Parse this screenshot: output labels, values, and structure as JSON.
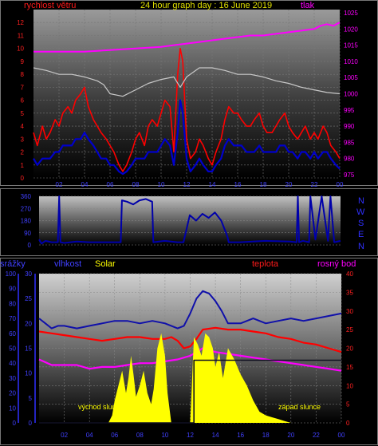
{
  "header": {
    "left_label": "rychlost větru",
    "title": "24 hour graph day : 16 June 2019",
    "right_label": "tlak"
  },
  "wind_dir_letters": [
    "N",
    "W",
    "S",
    "E",
    "N"
  ],
  "lower_labels": {
    "rain": "srážky",
    "humidity": "vlhkost",
    "solar": "Solar",
    "temperature": "teplota",
    "dewpoint": "rosný bod"
  },
  "annotations": {
    "sunrise": "východ slun",
    "sunset": "západ slunce"
  },
  "colors": {
    "wind_gust": "#ff0000",
    "wind_avg": "#0000cc",
    "pressure": "#ff00ff",
    "outdoor": "#c8c8c8",
    "wind_dir": "#0000aa",
    "humidity": "#1010aa",
    "temperature": "#ff0000",
    "dewpoint": "#ff00ff",
    "solar": "#ffff00",
    "rain": "#0000aa"
  },
  "chart_data": [
    {
      "type": "line",
      "name": "wind-pressure",
      "x_ticks": [
        "02",
        "04",
        "06",
        "08",
        "10",
        "12",
        "14",
        "16",
        "18",
        "20",
        "22",
        "00"
      ],
      "x_range": [
        0,
        24
      ],
      "y_left_ticks": [
        0,
        1,
        2,
        3,
        4,
        5,
        6,
        7,
        8,
        9,
        10,
        11,
        12
      ],
      "y_left_range": [
        0,
        13
      ],
      "y_right_ticks": [
        975,
        980,
        985,
        990,
        995,
        1000,
        1005,
        1010,
        1015,
        1020,
        1025
      ],
      "y_right_range": [
        974,
        1026
      ],
      "series": [
        {
          "key": "gust",
          "axis": "left",
          "x": [
            0,
            0.3,
            0.7,
            1,
            1.3,
            1.7,
            2,
            2.3,
            2.7,
            3,
            3.3,
            3.7,
            4,
            4.3,
            4.7,
            5,
            5.3,
            5.7,
            6,
            6.3,
            6.7,
            7,
            7.3,
            7.7,
            8,
            8.3,
            8.7,
            9,
            9.3,
            9.7,
            10,
            10.3,
            10.7,
            11,
            11.3,
            11.5,
            11.7,
            12,
            12.3,
            12.7,
            13,
            13.3,
            13.7,
            14,
            14.3,
            14.7,
            15,
            15.3,
            15.7,
            16,
            16.3,
            16.7,
            17,
            17.3,
            17.7,
            18,
            18.3,
            18.7,
            19,
            19.3,
            19.7,
            20,
            20.3,
            20.7,
            21,
            21.3,
            21.7,
            22,
            22.3,
            22.7,
            23,
            23.3,
            23.7,
            24
          ],
          "y": [
            3.5,
            2.5,
            4,
            3,
            3.5,
            4.5,
            4,
            5,
            5.5,
            5,
            6,
            6.5,
            7,
            5.5,
            4.5,
            4,
            3.5,
            3,
            2.5,
            2,
            1,
            0.5,
            1,
            2,
            3,
            3.5,
            2.5,
            4,
            4.5,
            4,
            5,
            6,
            5.5,
            2,
            8,
            10,
            9,
            3,
            1.5,
            2,
            3,
            2.5,
            1.5,
            1,
            2,
            3,
            4.5,
            5.5,
            5,
            5,
            4.5,
            4,
            4,
            4.5,
            5,
            4,
            3.5,
            3.5,
            4,
            4.5,
            5,
            4,
            3.5,
            3,
            3.5,
            4,
            3,
            3.5,
            3,
            4,
            3.5,
            2.5,
            2,
            1.5
          ]
        },
        {
          "key": "avg",
          "axis": "left",
          "x": [
            0,
            0.3,
            0.7,
            1,
            1.3,
            1.7,
            2,
            2.3,
            2.7,
            3,
            3.3,
            3.7,
            4,
            4.3,
            4.7,
            5,
            5.3,
            5.7,
            6,
            6.3,
            6.7,
            7,
            7.3,
            7.7,
            8,
            8.3,
            8.7,
            9,
            9.3,
            9.7,
            10,
            10.3,
            10.7,
            11,
            11.3,
            11.5,
            11.7,
            12,
            12.3,
            12.7,
            13,
            13.3,
            13.7,
            14,
            14.3,
            14.7,
            15,
            15.3,
            15.7,
            16,
            16.3,
            16.7,
            17,
            17.3,
            17.7,
            18,
            18.3,
            18.7,
            19,
            19.3,
            19.7,
            20,
            20.3,
            20.7,
            21,
            21.3,
            21.7,
            22,
            22.3,
            22.7,
            23,
            23.3,
            23.7,
            24
          ],
          "y": [
            1.5,
            1,
            1.5,
            1.5,
            1.5,
            2,
            2,
            2.5,
            2.5,
            2.5,
            3,
            3,
            3.5,
            3,
            2.5,
            2,
            1.5,
            1.5,
            1,
            1,
            0.5,
            0.3,
            0.5,
            1,
            1.5,
            1.5,
            1.5,
            2,
            2,
            2,
            2.5,
            3,
            2.5,
            1,
            3.5,
            6,
            5,
            1.5,
            0.5,
            1,
            1.5,
            1,
            0.5,
            0.5,
            1,
            1.5,
            2.5,
            3,
            2.5,
            2.5,
            2.5,
            2,
            2,
            2,
            2.5,
            2,
            2,
            2,
            2,
            2.5,
            2.5,
            2,
            2,
            1.5,
            2,
            2,
            1.5,
            2,
            1.5,
            2,
            2,
            1.5,
            1,
            0.7
          ]
        },
        {
          "key": "pressure",
          "axis": "right",
          "x": [
            0,
            2,
            4,
            6,
            8,
            10,
            11,
            12,
            13,
            14,
            15,
            16,
            17,
            18,
            19,
            20,
            21,
            22,
            22.5,
            23,
            23.5,
            24
          ],
          "y": [
            1013,
            1013,
            1013,
            1013.5,
            1014,
            1014.5,
            1015,
            1015.5,
            1016,
            1016.5,
            1017,
            1017.5,
            1018,
            1018,
            1018.5,
            1019,
            1019.5,
            1020,
            1021,
            1021.5,
            1021,
            1022
          ]
        },
        {
          "key": "outdoor",
          "axis": "left",
          "x": [
            0,
            1,
            2,
            3,
            4,
            5,
            5.5,
            6,
            7,
            8,
            9,
            10,
            11,
            11.5,
            12,
            13,
            14,
            15,
            16,
            17,
            18,
            19,
            20,
            21,
            22,
            23,
            24
          ],
          "y": [
            8.5,
            8.3,
            8,
            8,
            7.8,
            7.5,
            7.2,
            6.5,
            6.3,
            6.8,
            7.3,
            7.6,
            7.8,
            7,
            7.8,
            8.5,
            8.5,
            8.3,
            8,
            8,
            7.8,
            7.5,
            7.3,
            7,
            6.8,
            6.6,
            6.5
          ]
        }
      ]
    },
    {
      "type": "line",
      "name": "wind-direction",
      "x_range": [
        0,
        24
      ],
      "y_ticks": [
        0,
        90,
        180,
        270,
        360
      ],
      "y_range": [
        0,
        360
      ],
      "series": [
        {
          "key": "direction",
          "x": [
            0,
            0.2,
            0.5,
            1,
            1.5,
            1.6,
            1.7,
            2,
            3,
            4,
            5,
            6,
            6.5,
            6.6,
            7,
            7.5,
            8,
            8.5,
            9,
            9.1,
            10,
            11,
            11.5,
            12,
            12.5,
            13,
            13.5,
            14,
            14.5,
            15,
            15.1,
            16,
            18,
            20,
            20.5,
            20.6,
            20.7,
            21,
            21.5,
            21.6,
            22,
            22.5,
            23,
            23.2,
            23.5,
            24
          ],
          "y": [
            40,
            10,
            30,
            20,
            20,
            360,
            20,
            15,
            25,
            20,
            20,
            20,
            20,
            330,
            320,
            300,
            330,
            340,
            320,
            20,
            30,
            20,
            20,
            220,
            180,
            230,
            200,
            240,
            180,
            60,
            20,
            20,
            30,
            25,
            20,
            360,
            20,
            30,
            20,
            360,
            40,
            360,
            30,
            360,
            20,
            30
          ]
        }
      ]
    },
    {
      "type": "line",
      "name": "temp-humidity-solar",
      "x_range": [
        0,
        24
      ],
      "y_rain_ticks": [
        0,
        10,
        20,
        30,
        40,
        50,
        60,
        70,
        80,
        90,
        100
      ],
      "y_rain_range": [
        0,
        100
      ],
      "y_humidity_ticks": [
        0,
        5,
        10,
        15,
        20,
        25,
        30
      ],
      "y_humidity_range": [
        0,
        30
      ],
      "y_temp_ticks": [
        0,
        5,
        10,
        15,
        20,
        25,
        30,
        35,
        40
      ],
      "y_temp_range": [
        0,
        40
      ],
      "series": [
        {
          "key": "humidity",
          "axis": "humidity",
          "x": [
            0,
            0.5,
            1,
            1.5,
            2,
            3,
            4,
            5,
            6,
            7,
            8,
            9,
            10,
            10.5,
            11,
            11.5,
            12,
            12.5,
            13,
            13.5,
            14,
            14.5,
            15,
            16,
            17,
            18,
            19,
            20,
            21,
            22,
            23,
            24
          ],
          "y": [
            21,
            20,
            19,
            19.5,
            19.5,
            19,
            19.5,
            20,
            20.5,
            20.5,
            20,
            20.5,
            20,
            19.5,
            19,
            19.5,
            22,
            25,
            26.5,
            26,
            24.5,
            22.5,
            20,
            20,
            21,
            20,
            20.5,
            21,
            20.5,
            21,
            21.5,
            22
          ]
        },
        {
          "key": "temperature",
          "axis": "temp",
          "x": [
            0,
            1,
            2,
            3,
            4,
            5,
            6,
            7,
            8,
            9,
            10,
            10.5,
            11,
            11.5,
            12,
            12.5,
            13,
            14,
            15,
            16,
            17,
            18,
            19,
            20,
            21,
            22,
            23,
            24
          ],
          "y": [
            24.5,
            24,
            23.5,
            23,
            22.5,
            22,
            22.5,
            23,
            23,
            22.5,
            22.5,
            23,
            22,
            20,
            20.5,
            22.5,
            25,
            25.5,
            25,
            25,
            24.5,
            24,
            23,
            22.5,
            21.5,
            21,
            20,
            19
          ]
        },
        {
          "key": "dewpoint",
          "axis": "temp",
          "x": [
            0,
            1,
            2,
            3,
            4,
            5,
            6,
            7,
            8,
            9,
            10,
            11,
            12,
            12.5,
            13,
            14,
            15,
            16,
            17,
            18,
            19,
            20,
            21,
            22,
            23,
            24
          ],
          "y": [
            17,
            15.5,
            15.5,
            15.5,
            14.5,
            15,
            15,
            15.5,
            16,
            16,
            16.5,
            17,
            18,
            19,
            20,
            19,
            18.5,
            18,
            17.5,
            17,
            16.5,
            16,
            15.5,
            15,
            14.5,
            14
          ]
        },
        {
          "key": "solar",
          "axis": "temp",
          "fill": true,
          "x": [
            0,
            5.5,
            5.8,
            6,
            6.3,
            6.6,
            6.9,
            7.1,
            7.3,
            7.5,
            7.7,
            8,
            8.3,
            8.6,
            8.9,
            9.1,
            9.4,
            9.7,
            10,
            10.2,
            10.5,
            11,
            11.5,
            12,
            12.3,
            12.6,
            12.9,
            13.2,
            13.5,
            13.8,
            14,
            14.3,
            14.6,
            15,
            15.5,
            16,
            16.5,
            17,
            17.5,
            18,
            18.5,
            19,
            19.5,
            20,
            24
          ],
          "y": [
            0,
            0,
            2,
            6,
            10,
            14,
            8,
            12,
            18,
            13,
            7,
            10,
            14,
            8,
            5,
            9,
            20,
            24,
            18,
            8,
            0,
            0,
            0,
            0,
            23,
            21,
            18,
            24,
            23,
            20,
            15,
            19,
            12,
            20,
            17,
            13,
            10,
            6,
            3,
            2,
            1.5,
            1,
            0.5,
            0,
            0
          ]
        },
        {
          "key": "rain",
          "axis": "rain",
          "step": true,
          "x": [
            0,
            12.3,
            12.3,
            24
          ],
          "y": [
            0,
            0,
            42,
            42
          ]
        }
      ]
    }
  ]
}
